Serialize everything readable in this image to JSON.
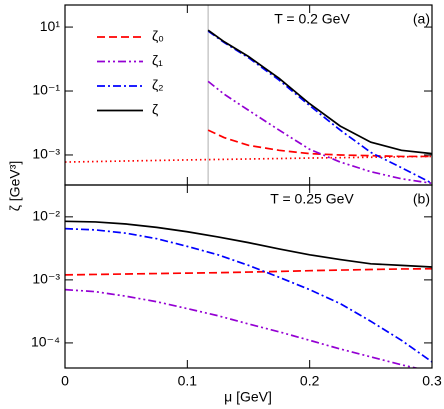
{
  "chart_data": [
    {
      "type": "line",
      "ylabel": "ζ [GeV³]",
      "yscale": "log",
      "legend": "upper left",
      "annotations": [
        "T = 0.2 GeV",
        "(a)"
      ],
      "vline": 0.117,
      "xlim": [
        0,
        0.3
      ],
      "xticks": [
        0,
        0.1,
        0.2,
        0.3
      ],
      "ylim": [
        0.000115,
        49
      ],
      "yticks": [
        {
          "value": 10,
          "label": "10¹"
        },
        {
          "value": 0.1,
          "label": "10⁻¹"
        },
        {
          "value": 0.001,
          "label": "10⁻³"
        }
      ],
      "series": [
        {
          "name": "ζ₀",
          "color": "#ff0000",
          "dash": "dashed",
          "x": [
            0.117,
            0.13,
            0.15,
            0.175,
            0.2,
            0.225,
            0.25,
            0.275,
            0.3
          ],
          "values": [
            0.006,
            0.0035,
            0.002,
            0.0014,
            0.0011,
            0.001,
            0.00095,
            0.0009,
            0.0009
          ]
        },
        {
          "name": "ζ₁",
          "color": "#9400d3",
          "dash": "dashdotdot",
          "x": [
            0.117,
            0.13,
            0.15,
            0.175,
            0.2,
            0.225,
            0.25,
            0.275,
            0.3
          ],
          "values": [
            0.2,
            0.08,
            0.025,
            0.006,
            0.0015,
            0.0006,
            0.0003,
            0.00018,
            0.00013
          ]
        },
        {
          "name": "ζ₂",
          "color": "#0000ff",
          "dash": "dashdot",
          "x": [
            0.117,
            0.13,
            0.15,
            0.175,
            0.2,
            0.225,
            0.25,
            0.275,
            0.3
          ],
          "values": [
            7.5,
            3.3,
            1.1,
            0.22,
            0.035,
            0.006,
            0.0012,
            0.0004,
            0.00013
          ]
        },
        {
          "name": "ζ",
          "color": "#000000",
          "dash": "solid",
          "x": [
            0.117,
            0.13,
            0.15,
            0.175,
            0.2,
            0.225,
            0.25,
            0.275,
            0.3
          ],
          "values": [
            8,
            3.5,
            1.2,
            0.25,
            0.04,
            0.008,
            0.0025,
            0.0014,
            0.0011
          ]
        },
        {
          "color": "#ff0000",
          "dash": "dotted",
          "x": [
            0,
            0.1,
            0.2,
            0.3
          ],
          "values": [
            0.0006,
            0.0007,
            0.0008,
            0.0009
          ]
        }
      ]
    },
    {
      "type": "line",
      "xlabel": "μ [GeV]",
      "yscale": "log",
      "annotations": [
        "T = 0.25 GeV",
        "(b)"
      ],
      "xlim": [
        0,
        0.3
      ],
      "xticks": [
        0,
        0.1,
        0.2,
        0.3
      ],
      "ylim": [
        4e-05,
        0.032
      ],
      "yticks": [
        {
          "value": 0.01,
          "label": "10⁻²"
        },
        {
          "value": 0.001,
          "label": "10⁻³"
        },
        {
          "value": 0.0001,
          "label": "10⁻⁴"
        }
      ],
      "series": [
        {
          "color": "#ff0000",
          "dash": "dashed",
          "x": [
            0,
            0.025,
            0.05,
            0.075,
            0.1,
            0.125,
            0.15,
            0.175,
            0.2,
            0.225,
            0.25,
            0.275,
            0.3
          ],
          "values": [
            0.0012,
            0.00122,
            0.00124,
            0.00126,
            0.00128,
            0.0013,
            0.00133,
            0.00136,
            0.0014,
            0.00143,
            0.00146,
            0.00149,
            0.0015
          ]
        },
        {
          "color": "#9400d3",
          "dash": "dashdotdot",
          "x": [
            0,
            0.025,
            0.05,
            0.075,
            0.1,
            0.125,
            0.15,
            0.175,
            0.2,
            0.225,
            0.25,
            0.275,
            0.3
          ],
          "values": [
            0.0007,
            0.00065,
            0.00055,
            0.00045,
            0.00035,
            0.00027,
            0.0002,
            0.00015,
            0.00011,
            8e-05,
            6e-05,
            4.5e-05,
            3.5e-05
          ]
        },
        {
          "color": "#0000ff",
          "dash": "dashdot",
          "x": [
            0,
            0.025,
            0.05,
            0.075,
            0.1,
            0.125,
            0.15,
            0.175,
            0.2,
            0.225,
            0.25,
            0.275,
            0.3
          ],
          "values": [
            0.0065,
            0.0062,
            0.0055,
            0.0045,
            0.0034,
            0.0025,
            0.0017,
            0.0011,
            0.0007,
            0.00042,
            0.00022,
            0.00011,
            5e-05
          ]
        },
        {
          "color": "#000000",
          "dash": "solid",
          "x": [
            0,
            0.025,
            0.05,
            0.075,
            0.1,
            0.125,
            0.15,
            0.175,
            0.2,
            0.225,
            0.25,
            0.275,
            0.3
          ],
          "values": [
            0.0085,
            0.0083,
            0.0077,
            0.0068,
            0.0058,
            0.0048,
            0.0039,
            0.0031,
            0.0025,
            0.0021,
            0.0018,
            0.0017,
            0.0016
          ]
        }
      ]
    }
  ]
}
